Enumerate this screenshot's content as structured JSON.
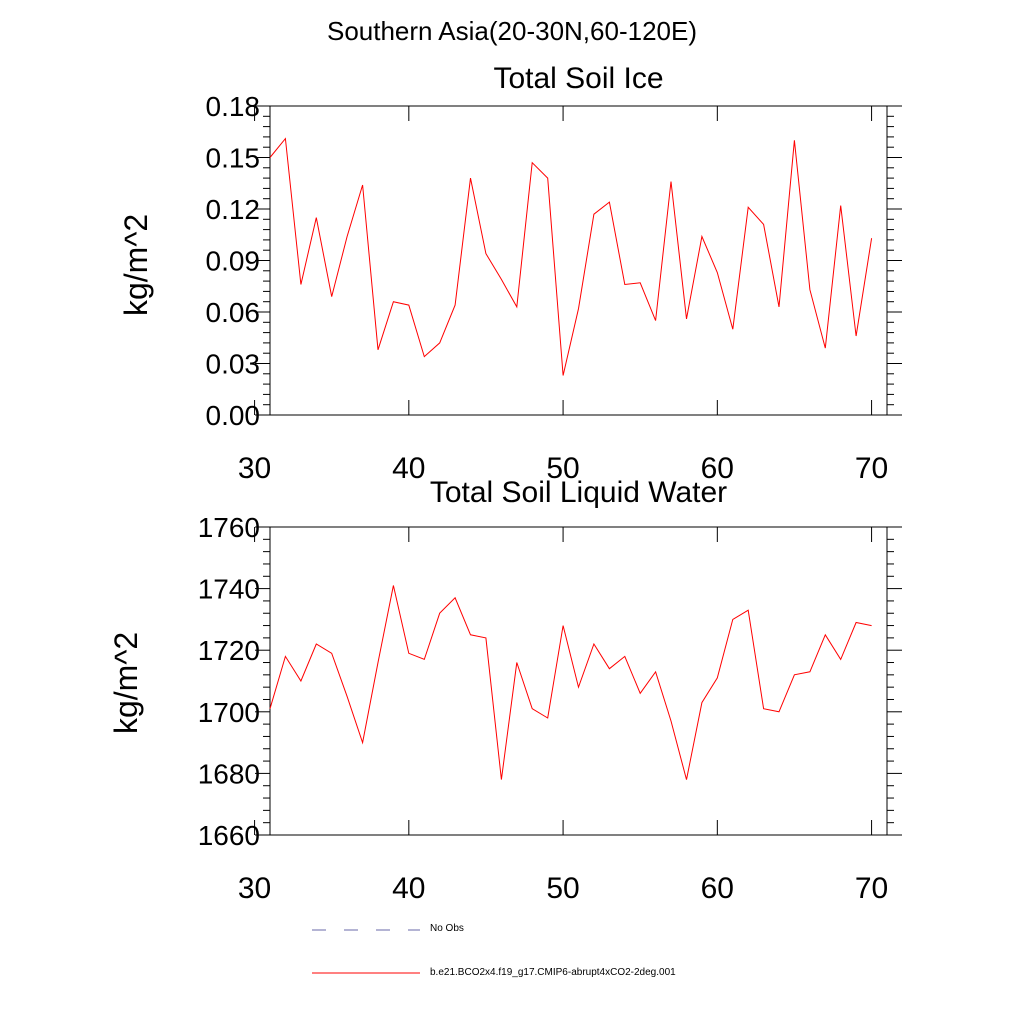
{
  "figure_title": "Southern Asia(20-30N,60-120E)",
  "colors": {
    "model": "#ff0000",
    "obs": "#6a6aa8",
    "axis": "#000000"
  },
  "legend": {
    "obs_label": "No Obs",
    "model_label": "b.e21.BCO2x4.f19_g17.CMIP6-abrupt4xCO2-2deg.001"
  },
  "chart_data": [
    {
      "type": "line",
      "title": "Total Soil Ice",
      "xlabel": "",
      "ylabel": "kg/m^2",
      "xlim": [
        31,
        71
      ],
      "ylim": [
        0,
        0.18
      ],
      "xticks": [
        30,
        40,
        50,
        60,
        70
      ],
      "yticks": [
        0.0,
        0.03,
        0.06,
        0.09,
        0.12,
        0.15,
        0.18
      ],
      "ytick_labels": [
        "0.00",
        "0.03",
        "0.06",
        "0.09",
        "0.12",
        "0.15",
        "0.18"
      ],
      "series": [
        {
          "name": "b.e21.BCO2x4.f19_g17.CMIP6-abrupt4xCO2-2deg.001",
          "x": [
            31,
            32,
            33,
            34,
            35,
            36,
            37,
            38,
            39,
            40,
            41,
            42,
            43,
            44,
            45,
            46,
            47,
            48,
            49,
            50,
            51,
            52,
            53,
            54,
            55,
            56,
            57,
            58,
            59,
            60,
            61,
            62,
            63,
            64,
            65,
            66,
            67,
            68,
            69,
            70
          ],
          "values": [
            0.15,
            0.161,
            0.076,
            0.115,
            0.069,
            0.104,
            0.134,
            0.038,
            0.066,
            0.064,
            0.034,
            0.042,
            0.064,
            0.138,
            0.094,
            0.079,
            0.063,
            0.147,
            0.138,
            0.023,
            0.062,
            0.117,
            0.124,
            0.076,
            0.077,
            0.055,
            0.136,
            0.056,
            0.104,
            0.083,
            0.05,
            0.121,
            0.111,
            0.063,
            0.16,
            0.073,
            0.039,
            0.122,
            0.046,
            0.103
          ]
        }
      ]
    },
    {
      "type": "line",
      "title": "Total Soil Liquid Water",
      "xlabel": "",
      "ylabel": "kg/m^2",
      "xlim": [
        31,
        71
      ],
      "ylim": [
        1660,
        1760
      ],
      "xticks": [
        30,
        40,
        50,
        60,
        70
      ],
      "yticks": [
        1660,
        1680,
        1700,
        1720,
        1740,
        1760
      ],
      "ytick_labels": [
        "1660",
        "1680",
        "1700",
        "1720",
        "1740",
        "1760"
      ],
      "series": [
        {
          "name": "b.e21.BCO2x4.f19_g17.CMIP6-abrupt4xCO2-2deg.001",
          "x": [
            31,
            32,
            33,
            34,
            35,
            36,
            37,
            38,
            39,
            40,
            41,
            42,
            43,
            44,
            45,
            46,
            47,
            48,
            49,
            50,
            51,
            52,
            53,
            54,
            55,
            56,
            57,
            58,
            59,
            60,
            61,
            62,
            63,
            64,
            65,
            66,
            67,
            68,
            69,
            70
          ],
          "values": [
            1701,
            1718,
            1710,
            1722,
            1719,
            1705,
            1690,
            1716,
            1741,
            1719,
            1717,
            1732,
            1737,
            1725,
            1724,
            1678,
            1716,
            1701,
            1698,
            1728,
            1708,
            1722,
            1714,
            1718,
            1706,
            1713,
            1697,
            1678,
            1703,
            1711,
            1730,
            1733,
            1701,
            1700,
            1712,
            1713,
            1725,
            1717,
            1729,
            1728
          ]
        }
      ]
    }
  ]
}
